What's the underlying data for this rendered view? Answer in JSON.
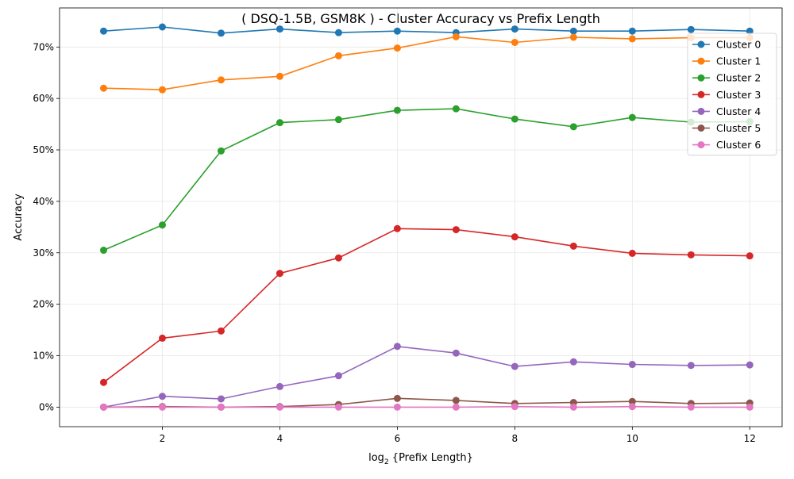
{
  "chart_data": {
    "type": "line",
    "title": "( DSQ-1.5B, GSM8K ) - Cluster Accuracy vs Prefix Length",
    "xlabel_main": "log",
    "xlabel_sub": "2",
    "xlabel_rest": " {Prefix Length}",
    "ylabel": "Accuracy",
    "x": [
      1,
      2,
      3,
      4,
      5,
      6,
      7,
      8,
      9,
      10,
      11,
      12
    ],
    "xlim": [
      0.25,
      12.55
    ],
    "ylim": [
      -0.038,
      0.776
    ],
    "xticks": [
      2,
      4,
      6,
      8,
      10,
      12
    ],
    "yticks": [
      0,
      0.1,
      0.2,
      0.3,
      0.4,
      0.5,
      0.6,
      0.7
    ],
    "ytick_labels": [
      "0%",
      "10%",
      "20%",
      "30%",
      "40%",
      "50%",
      "60%",
      "70%"
    ],
    "grid": true,
    "legend_position": "top-right",
    "series": [
      {
        "name": "Cluster 0",
        "color": "#1f77b4",
        "values": [
          0.731,
          0.739,
          0.727,
          0.735,
          0.728,
          0.731,
          0.728,
          0.735,
          0.731,
          0.731,
          0.734,
          0.731
        ]
      },
      {
        "name": "Cluster 1",
        "color": "#ff7f0e",
        "values": [
          0.62,
          0.617,
          0.636,
          0.643,
          0.683,
          0.698,
          0.72,
          0.709,
          0.719,
          0.716,
          0.718,
          0.718
        ]
      },
      {
        "name": "Cluster 2",
        "color": "#2ca02c",
        "values": [
          0.305,
          0.354,
          0.498,
          0.553,
          0.559,
          0.577,
          0.58,
          0.56,
          0.545,
          0.563,
          0.554,
          0.555
        ]
      },
      {
        "name": "Cluster 3",
        "color": "#d62728",
        "values": [
          0.048,
          0.134,
          0.148,
          0.26,
          0.29,
          0.347,
          0.345,
          0.331,
          0.313,
          0.299,
          0.296,
          0.294
        ]
      },
      {
        "name": "Cluster 4",
        "color": "#9467bd",
        "values": [
          0.0,
          0.021,
          0.016,
          0.04,
          0.061,
          0.118,
          0.105,
          0.079,
          0.088,
          0.083,
          0.081,
          0.082
        ]
      },
      {
        "name": "Cluster 5",
        "color": "#8c564b",
        "values": [
          0.0,
          0.001,
          0.0,
          0.001,
          0.005,
          0.017,
          0.013,
          0.007,
          0.009,
          0.011,
          0.007,
          0.008
        ]
      },
      {
        "name": "Cluster 6",
        "color": "#e377c2",
        "values": [
          0.0,
          0.0,
          0.0,
          0.0,
          0.0,
          0.0,
          0.0,
          0.001,
          0.0,
          0.001,
          0.0,
          0.0
        ]
      }
    ]
  }
}
